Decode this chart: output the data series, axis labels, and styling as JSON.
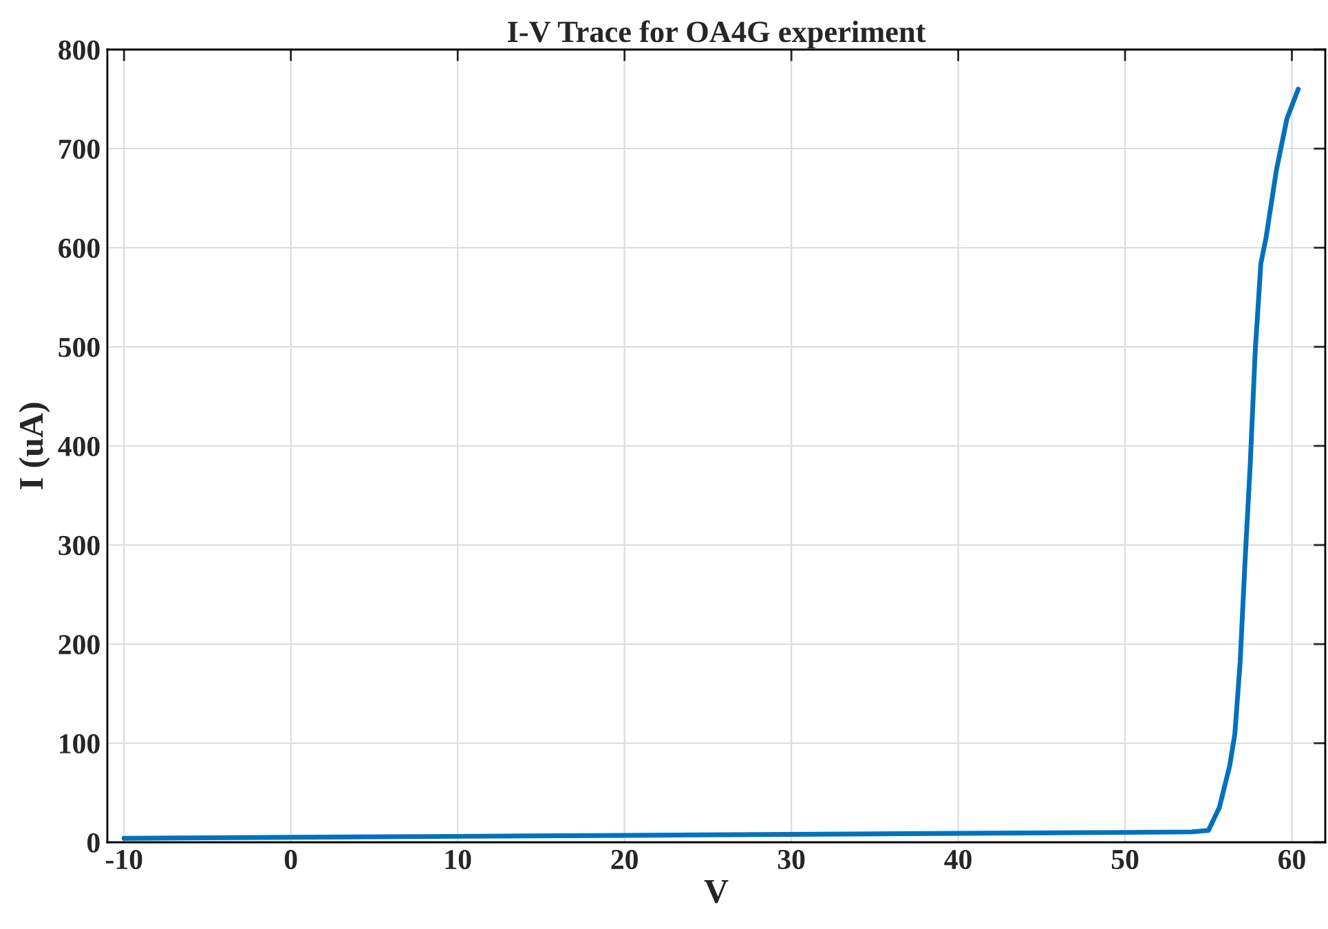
{
  "chart_data": {
    "type": "line",
    "title": "I-V Trace for OA4G experiment",
    "xlabel": "V",
    "ylabel": "I (uA)",
    "x": [
      -10,
      0,
      10,
      20,
      30,
      40,
      50,
      54,
      55,
      55.65,
      56.27,
      56.58,
      56.9,
      57.2,
      57.5,
      57.8,
      58.14,
      58.45,
      59.07,
      59.7,
      60.38
    ],
    "series": [
      {
        "color": "#0072bd",
        "values": [
          4,
          5,
          6,
          7,
          8,
          9,
          10,
          10.5,
          12,
          35,
          77,
          109,
          182,
          286,
          380,
          495,
          584,
          610,
          678,
          730,
          760
        ]
      }
    ],
    "xlim": [
      -11,
      62
    ],
    "xticks": [
      -10,
      0,
      10,
      20,
      30,
      40,
      50,
      60
    ],
    "ylim": [
      0,
      800
    ],
    "yticks": [
      0,
      100,
      200,
      300,
      400,
      500,
      600,
      700,
      800
    ],
    "grid": true,
    "line_style": "solid"
  }
}
